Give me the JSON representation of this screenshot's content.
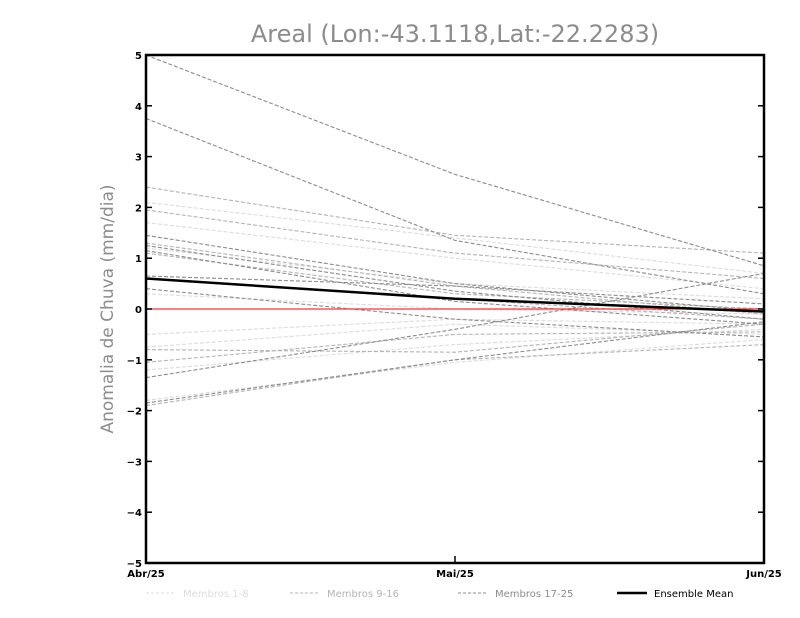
{
  "chart_data": {
    "type": "line",
    "title": "Areal (Lon:-43.1118,Lat:-22.2283)",
    "ylabel": "Anomalia de Chuva (mm/dia)",
    "xlabel": "",
    "categories": [
      "Abr/25",
      "Mai/25",
      "Jun/25"
    ],
    "ylim": [
      -5,
      5
    ],
    "yticks": [
      -5,
      -4,
      -3,
      -2,
      -1,
      0,
      1,
      2,
      3,
      4,
      5
    ],
    "grid": false,
    "legend_position": "bottom",
    "reference_line": {
      "y": 0,
      "color": "#ff3333"
    },
    "legend": [
      {
        "label": "Membros 1-8",
        "color": "#dcdcdc",
        "style": "dashed"
      },
      {
        "label": "Membros 9-16",
        "color": "#b4b4b4",
        "style": "dashed"
      },
      {
        "label": "Membros 17-25",
        "color": "#8c8c8c",
        "style": "dashed"
      },
      {
        "label": "Ensemble Mean",
        "color": "#000000",
        "style": "solid"
      }
    ],
    "series": [
      {
        "group": "Membros 1-8",
        "values": [
          2.1,
          1.4,
          0.7
        ]
      },
      {
        "group": "Membros 1-8",
        "values": [
          1.7,
          1.0,
          0.4
        ]
      },
      {
        "group": "Membros 1-8",
        "values": [
          1.2,
          0.5,
          0.2
        ]
      },
      {
        "group": "Membros 1-8",
        "values": [
          0.3,
          0.0,
          -0.1
        ]
      },
      {
        "group": "Membros 1-8",
        "values": [
          -0.5,
          -0.2,
          -0.3
        ]
      },
      {
        "group": "Membros 1-8",
        "values": [
          -0.75,
          -0.3,
          -0.5
        ]
      },
      {
        "group": "Membros 1-8",
        "values": [
          -1.2,
          -0.7,
          -0.4
        ]
      },
      {
        "group": "Membros 1-8",
        "values": [
          -1.8,
          -1.05,
          -0.6
        ]
      },
      {
        "group": "Membros 9-16",
        "values": [
          2.4,
          1.45,
          1.1
        ]
      },
      {
        "group": "Membros 9-16",
        "values": [
          1.95,
          1.1,
          0.6
        ]
      },
      {
        "group": "Membros 9-16",
        "values": [
          1.3,
          0.45,
          -0.1
        ]
      },
      {
        "group": "Membros 9-16",
        "values": [
          1.1,
          0.3,
          0.0
        ]
      },
      {
        "group": "Membros 9-16",
        "values": [
          0.6,
          0.2,
          -0.2
        ]
      },
      {
        "group": "Membros 9-16",
        "values": [
          -0.8,
          -0.85,
          -0.3
        ]
      },
      {
        "group": "Membros 9-16",
        "values": [
          -1.05,
          -0.5,
          -0.45
        ]
      },
      {
        "group": "Membros 9-16",
        "values": [
          -1.9,
          -1.0,
          -0.7
        ]
      },
      {
        "group": "Membros 17-25",
        "values": [
          5.0,
          2.65,
          0.85
        ]
      },
      {
        "group": "Membros 17-25",
        "values": [
          3.75,
          1.35,
          0.3
        ]
      },
      {
        "group": "Membros 17-25",
        "values": [
          1.45,
          0.5,
          -0.05
        ]
      },
      {
        "group": "Membros 17-25",
        "values": [
          1.25,
          0.35,
          -0.2
        ]
      },
      {
        "group": "Membros 17-25",
        "values": [
          1.15,
          0.15,
          -0.3
        ]
      },
      {
        "group": "Membros 17-25",
        "values": [
          0.65,
          0.45,
          0.1
        ]
      },
      {
        "group": "Membros 17-25",
        "values": [
          0.4,
          -0.2,
          -0.55
        ]
      },
      {
        "group": "Membros 17-25",
        "values": [
          -1.35,
          -0.4,
          0.7
        ]
      },
      {
        "group": "Membros 17-25",
        "values": [
          -1.85,
          -1.0,
          -0.25
        ]
      },
      {
        "group": "Ensemble Mean",
        "values": [
          0.6,
          0.2,
          -0.05
        ]
      }
    ]
  }
}
